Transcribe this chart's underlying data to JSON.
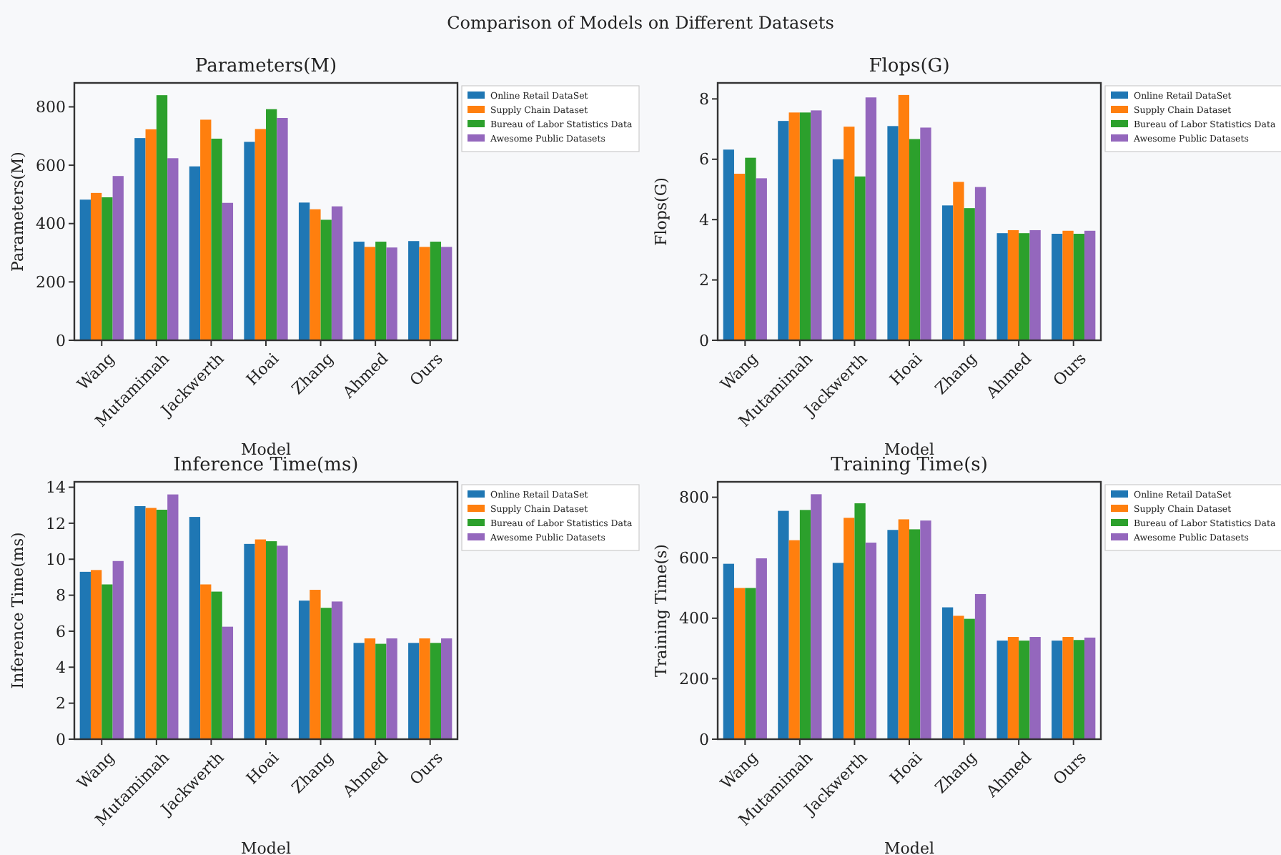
{
  "chart_data": [
    {
      "type": "bar",
      "title": "Parameters(M)",
      "annotations": [
        "Comparison of Models on Different Datasets"
      ],
      "xlabel": "Model",
      "ylabel": "Parameters(M)",
      "categories": [
        "Wang",
        "Mutamimah",
        "Jackwerth",
        "Hoai",
        "Zhang",
        "Ahmed",
        "Ours"
      ],
      "ylim": [
        0,
        882
      ],
      "yticks": [
        0,
        200,
        400,
        600,
        800
      ],
      "legend": "top right",
      "grid": false,
      "series": [
        {
          "name": "Online Retail DataSet",
          "color": "#1f77b4",
          "values": [
            482,
            693,
            596,
            680,
            472,
            338,
            340
          ]
        },
        {
          "name": "Supply Chain Dataset",
          "color": "#ff7f0e",
          "values": [
            505,
            723,
            756,
            724,
            449,
            320,
            320
          ]
        },
        {
          "name": "Bureau of Labor Statistics Data",
          "color": "#2ca02c",
          "values": [
            490,
            840,
            691,
            792,
            413,
            338,
            338
          ]
        },
        {
          "name": "Awesome Public Datasets",
          "color": "#9467bd",
          "values": [
            563,
            624,
            471,
            762,
            459,
            318,
            320
          ]
        }
      ]
    },
    {
      "type": "bar",
      "title": "Flops(G)",
      "xlabel": "Model",
      "ylabel": "Flops(G)",
      "categories": [
        "Wang",
        "Mutamimah",
        "Jackwerth",
        "Hoai",
        "Zhang",
        "Ahmed",
        "Ours"
      ],
      "ylim": [
        0,
        8.53
      ],
      "yticks": [
        0,
        2,
        4,
        6,
        8
      ],
      "legend": "top right",
      "grid": false,
      "series": [
        {
          "name": "Online Retail DataSet",
          "color": "#1f77b4",
          "values": [
            6.32,
            7.27,
            6.0,
            7.1,
            4.47,
            3.55,
            3.53
          ]
        },
        {
          "name": "Supply Chain Dataset",
          "color": "#ff7f0e",
          "values": [
            5.52,
            7.55,
            7.08,
            8.13,
            5.25,
            3.65,
            3.63
          ]
        },
        {
          "name": "Bureau of Labor Statistics Data",
          "color": "#2ca02c",
          "values": [
            6.05,
            7.55,
            5.43,
            6.67,
            4.38,
            3.55,
            3.53
          ]
        },
        {
          "name": "Awesome Public Datasets",
          "color": "#9467bd",
          "values": [
            5.37,
            7.62,
            8.05,
            7.05,
            5.08,
            3.65,
            3.63
          ]
        }
      ]
    },
    {
      "type": "bar",
      "title": "Inference Time(ms)",
      "xlabel": "Model",
      "ylabel": "Inference Time(ms)",
      "categories": [
        "Wang",
        "Mutamimah",
        "Jackwerth",
        "Hoai",
        "Zhang",
        "Ahmed",
        "Ours"
      ],
      "ylim": [
        0,
        14.3
      ],
      "yticks": [
        0,
        2,
        4,
        6,
        8,
        10,
        12,
        14
      ],
      "legend": "top right",
      "grid": false,
      "series": [
        {
          "name": "Online Retail DataSet",
          "color": "#1f77b4",
          "values": [
            9.3,
            12.95,
            12.35,
            10.85,
            7.7,
            5.35,
            5.35
          ]
        },
        {
          "name": "Supply Chain Dataset",
          "color": "#ff7f0e",
          "values": [
            9.4,
            12.85,
            8.6,
            11.1,
            8.3,
            5.6,
            5.6
          ]
        },
        {
          "name": "Bureau of Labor Statistics Data",
          "color": "#2ca02c",
          "values": [
            8.6,
            12.75,
            8.2,
            11.0,
            7.3,
            5.3,
            5.35
          ]
        },
        {
          "name": "Awesome Public Datasets",
          "color": "#9467bd",
          "values": [
            9.9,
            13.6,
            6.25,
            10.75,
            7.65,
            5.6,
            5.6
          ]
        }
      ]
    },
    {
      "type": "bar",
      "title": "Training Time(s)",
      "xlabel": "Model",
      "ylabel": "Training Time(s)",
      "categories": [
        "Wang",
        "Mutamimah",
        "Jackwerth",
        "Hoai",
        "Zhang",
        "Ahmed",
        "Ours"
      ],
      "ylim": [
        0,
        851
      ],
      "yticks": [
        0,
        200,
        400,
        600,
        800
      ],
      "legend": "top right",
      "grid": false,
      "series": [
        {
          "name": "Online Retail DataSet",
          "color": "#1f77b4",
          "values": [
            580,
            755,
            583,
            692,
            436,
            326,
            326
          ]
        },
        {
          "name": "Supply Chain Dataset",
          "color": "#ff7f0e",
          "values": [
            500,
            658,
            732,
            727,
            408,
            338,
            338
          ]
        },
        {
          "name": "Bureau of Labor Statistics Data",
          "color": "#2ca02c",
          "values": [
            500,
            758,
            780,
            694,
            398,
            326,
            328
          ]
        },
        {
          "name": "Awesome Public Datasets",
          "color": "#9467bd",
          "values": [
            598,
            810,
            650,
            723,
            480,
            338,
            336
          ]
        }
      ]
    }
  ]
}
